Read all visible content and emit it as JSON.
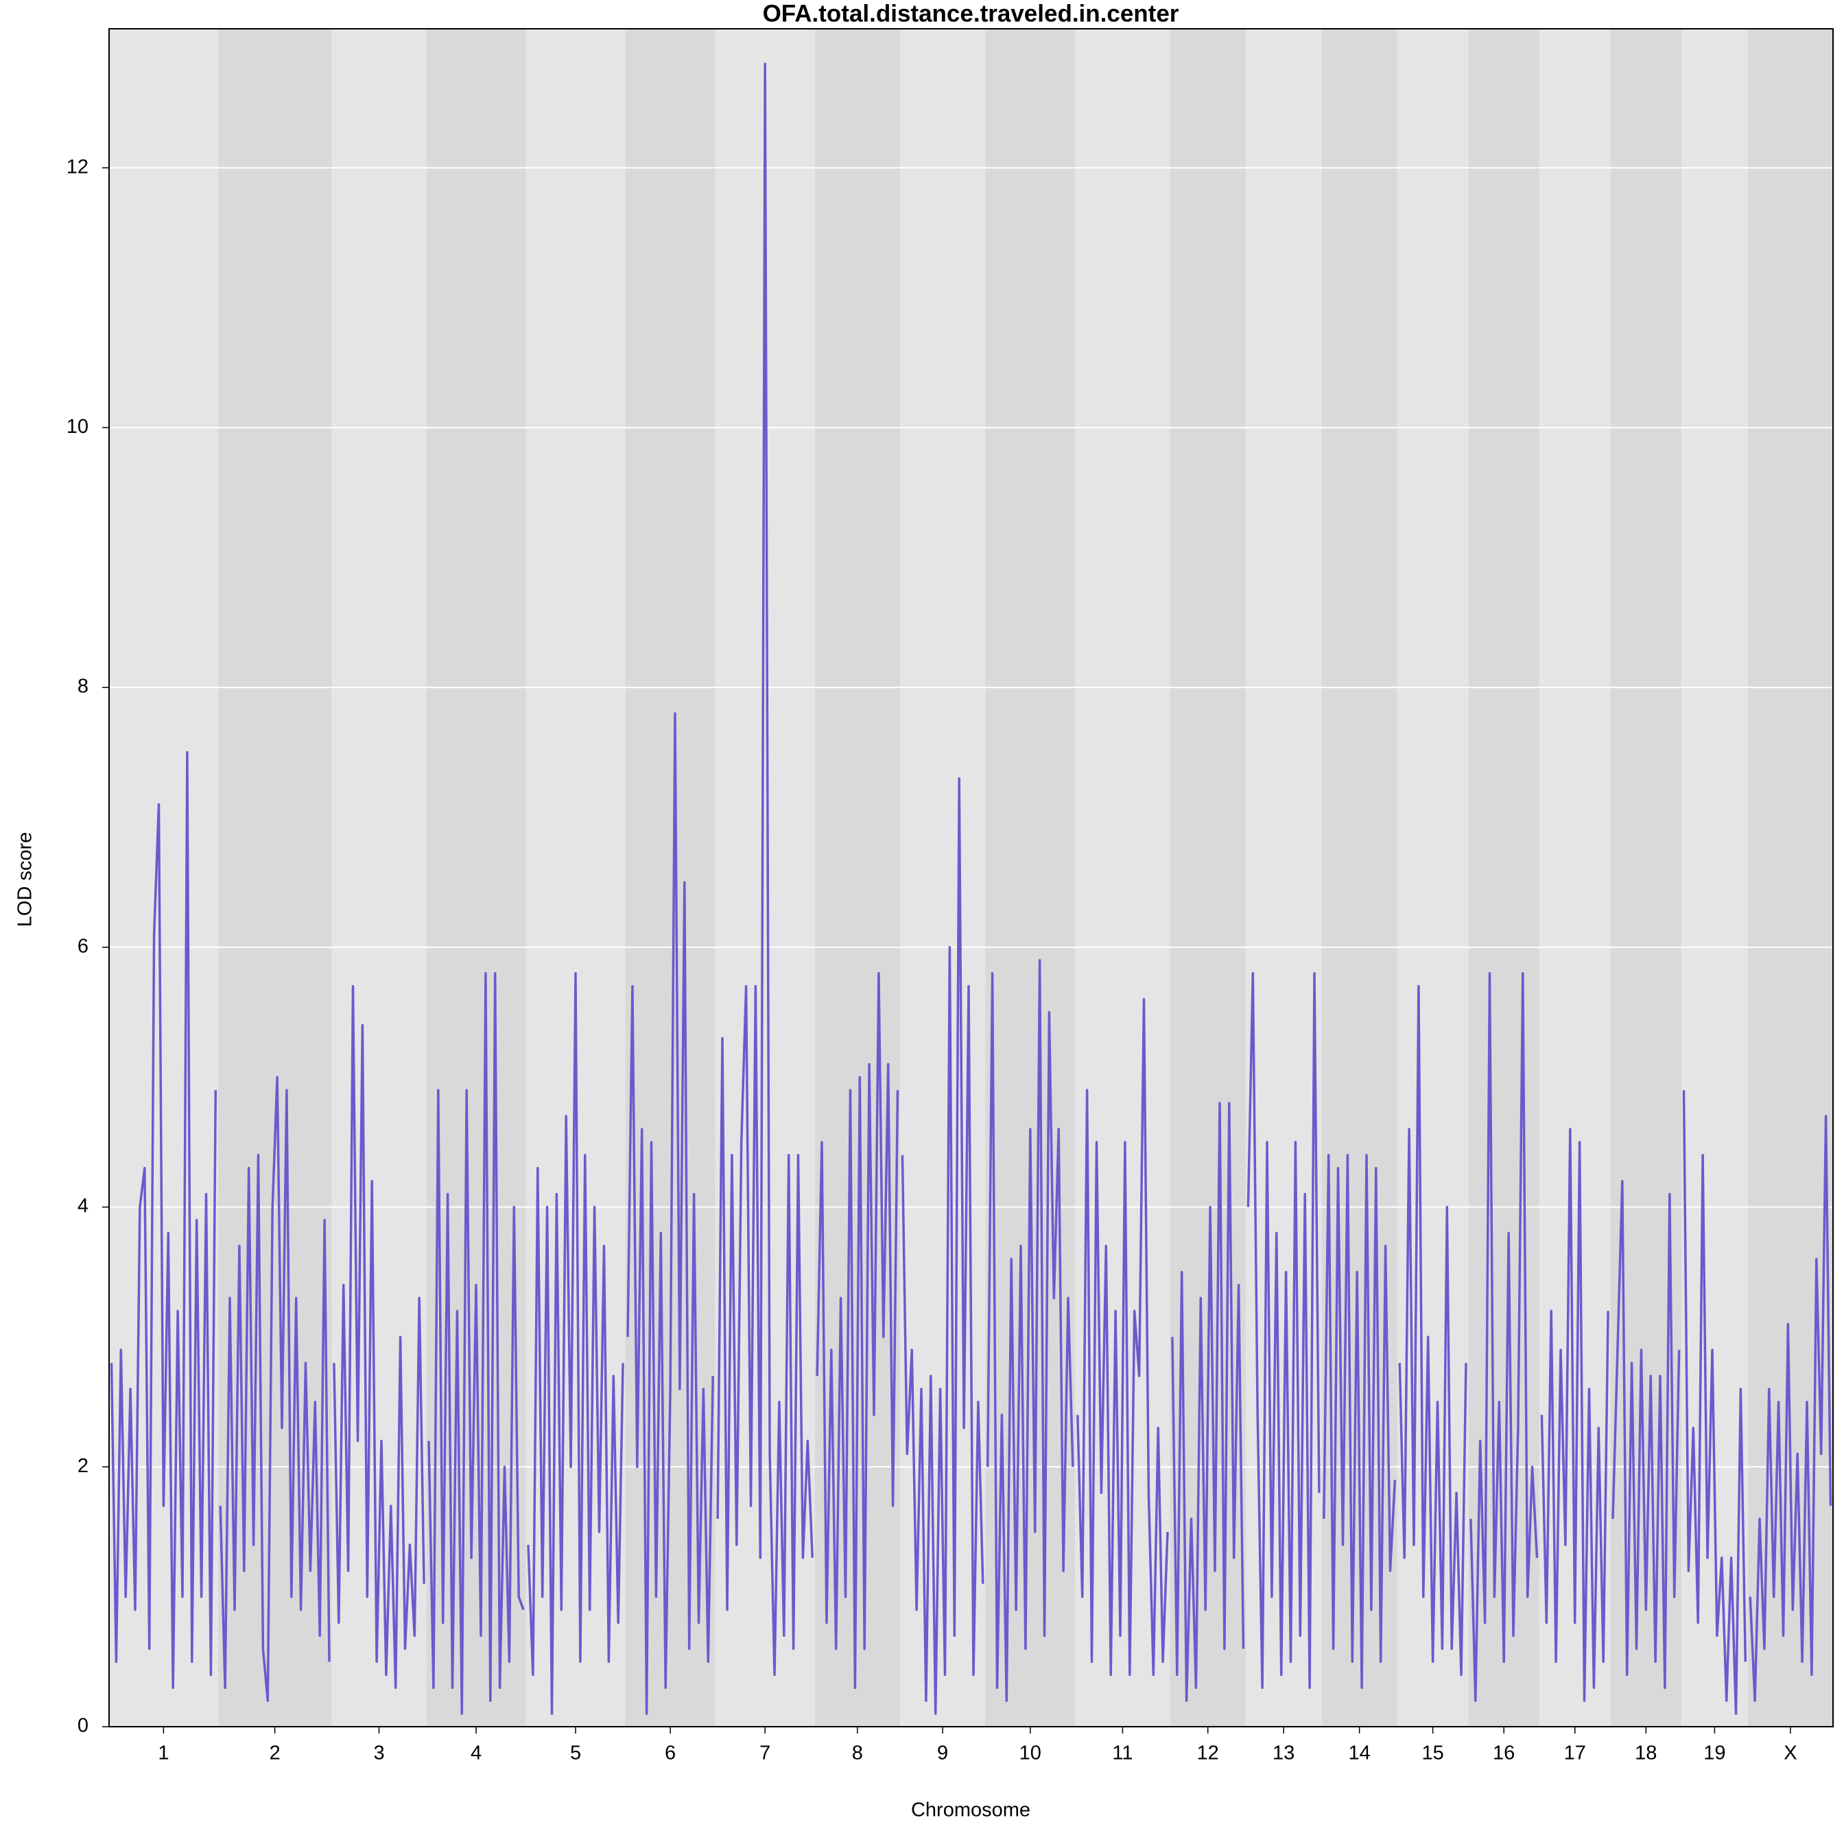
{
  "chart_data": {
    "type": "line",
    "title": "OFA.total.distance.traveled.in.center",
    "xlabel": "Chromosome",
    "ylabel": "LOD score",
    "color": "#6a5acd",
    "grid": true,
    "ylim": [
      0,
      13.07
    ],
    "yticks": [
      0,
      2,
      4,
      6,
      8,
      10,
      12
    ],
    "chromosomes": [
      {
        "label": "1",
        "values": [
          2.8,
          0.5,
          2.9,
          1.0,
          2.6,
          0.9,
          4.0,
          4.3,
          0.6,
          6.1,
          7.1,
          1.7,
          3.8,
          0.3,
          3.2,
          1.0,
          7.5,
          0.5,
          3.9,
          1.0,
          4.1,
          0.4,
          4.9
        ]
      },
      {
        "label": "2",
        "values": [
          1.7,
          0.3,
          3.3,
          0.9,
          3.7,
          1.2,
          4.3,
          1.4,
          4.4,
          0.6,
          0.2,
          4.0,
          5.0,
          2.3,
          4.9,
          1.0,
          3.3,
          0.9,
          2.8,
          1.2,
          2.5,
          0.7,
          3.9,
          0.5
        ]
      },
      {
        "label": "3",
        "values": [
          2.8,
          0.8,
          3.4,
          1.2,
          5.7,
          2.2,
          5.4,
          1.0,
          4.2,
          0.5,
          2.2,
          0.4,
          1.7,
          0.3,
          3.0,
          0.6,
          1.4,
          0.7,
          3.3,
          1.1
        ]
      },
      {
        "label": "4",
        "values": [
          2.2,
          0.3,
          4.9,
          0.8,
          4.1,
          0.3,
          3.2,
          0.1,
          4.9,
          1.3,
          3.4,
          0.7,
          5.8,
          0.2,
          5.8,
          0.3,
          2.0,
          0.5,
          4.0,
          1.0,
          0.9
        ]
      },
      {
        "label": "5",
        "values": [
          1.4,
          0.4,
          4.3,
          1.0,
          4.0,
          0.1,
          4.1,
          0.9,
          4.7,
          2.0,
          5.8,
          0.5,
          4.4,
          0.9,
          4.0,
          1.5,
          3.7,
          0.5,
          2.7,
          0.8,
          2.8
        ]
      },
      {
        "label": "6",
        "values": [
          3.0,
          5.7,
          2.0,
          4.6,
          0.1,
          4.5,
          1.0,
          3.8,
          0.3,
          2.6,
          7.8,
          2.6,
          6.5,
          0.6,
          4.1,
          0.8,
          2.6,
          0.5,
          2.7
        ]
      },
      {
        "label": "7",
        "values": [
          1.6,
          5.3,
          0.9,
          4.4,
          1.4,
          4.5,
          5.7,
          1.7,
          5.7,
          1.3,
          12.8,
          2.1,
          0.4,
          2.5,
          0.7,
          4.4,
          0.6,
          4.4,
          1.3,
          2.2,
          1.3
        ]
      },
      {
        "label": "8",
        "values": [
          2.7,
          4.5,
          0.8,
          2.9,
          0.6,
          3.3,
          1.0,
          4.9,
          0.3,
          5.0,
          0.6,
          5.1,
          2.4,
          5.8,
          3.0,
          5.1,
          1.7,
          4.9
        ]
      },
      {
        "label": "9",
        "values": [
          4.4,
          2.1,
          2.9,
          0.9,
          2.6,
          0.2,
          2.7,
          0.1,
          2.6,
          0.4,
          6.0,
          0.7,
          7.3,
          2.3,
          5.7,
          0.4,
          2.5,
          1.1
        ]
      },
      {
        "label": "10",
        "values": [
          2.0,
          5.8,
          0.3,
          2.4,
          0.2,
          3.6,
          0.9,
          3.7,
          0.6,
          4.6,
          1.5,
          5.9,
          0.7,
          5.5,
          3.3,
          4.6,
          1.2,
          3.3,
          2.0
        ]
      },
      {
        "label": "11",
        "values": [
          2.4,
          1.0,
          4.9,
          0.5,
          4.5,
          1.8,
          3.7,
          0.4,
          3.2,
          0.7,
          4.5,
          0.4,
          3.2,
          2.7,
          5.6,
          1.8,
          0.4,
          2.3,
          0.5,
          1.5
        ]
      },
      {
        "label": "12",
        "values": [
          3.0,
          0.4,
          3.5,
          0.2,
          1.6,
          0.3,
          3.3,
          0.9,
          4.0,
          1.2,
          4.8,
          0.6,
          4.8,
          1.3,
          3.4,
          0.6
        ]
      },
      {
        "label": "13",
        "values": [
          4.0,
          5.8,
          2.4,
          0.3,
          4.5,
          1.0,
          3.8,
          0.4,
          3.5,
          0.5,
          4.5,
          0.7,
          4.1,
          0.3,
          5.8,
          1.8
        ]
      },
      {
        "label": "14",
        "values": [
          1.6,
          4.4,
          0.6,
          4.3,
          1.4,
          4.4,
          0.5,
          3.5,
          0.3,
          4.4,
          0.9,
          4.3,
          0.5,
          3.7,
          1.2,
          1.9
        ]
      },
      {
        "label": "15",
        "values": [
          2.8,
          1.3,
          4.6,
          1.4,
          5.7,
          1.0,
          3.0,
          0.5,
          2.5,
          0.6,
          4.0,
          0.6,
          1.8,
          0.4,
          2.8
        ]
      },
      {
        "label": "16",
        "values": [
          1.6,
          0.2,
          2.2,
          0.8,
          5.8,
          1.0,
          2.5,
          0.5,
          3.8,
          0.7,
          2.3,
          5.8,
          1.0,
          2.0,
          1.3
        ]
      },
      {
        "label": "17",
        "values": [
          2.4,
          0.8,
          3.2,
          0.5,
          2.9,
          1.4,
          4.6,
          0.8,
          4.5,
          0.2,
          2.6,
          0.3,
          2.3,
          0.5,
          3.2
        ]
      },
      {
        "label": "18",
        "values": [
          1.6,
          2.9,
          4.2,
          0.4,
          2.8,
          0.6,
          2.9,
          0.9,
          2.7,
          0.5,
          2.7,
          0.3,
          4.1,
          1.0,
          2.9
        ]
      },
      {
        "label": "19",
        "values": [
          4.9,
          1.2,
          2.3,
          0.8,
          4.4,
          1.3,
          2.9,
          0.7,
          1.3,
          0.2,
          1.3,
          0.1,
          2.6,
          0.5
        ]
      },
      {
        "label": "X",
        "values": [
          1.0,
          0.2,
          1.6,
          0.6,
          2.6,
          1.0,
          2.5,
          0.7,
          3.1,
          0.9,
          2.1,
          0.5,
          2.5,
          0.4,
          3.6,
          2.1,
          4.7,
          1.7
        ]
      }
    ]
  }
}
